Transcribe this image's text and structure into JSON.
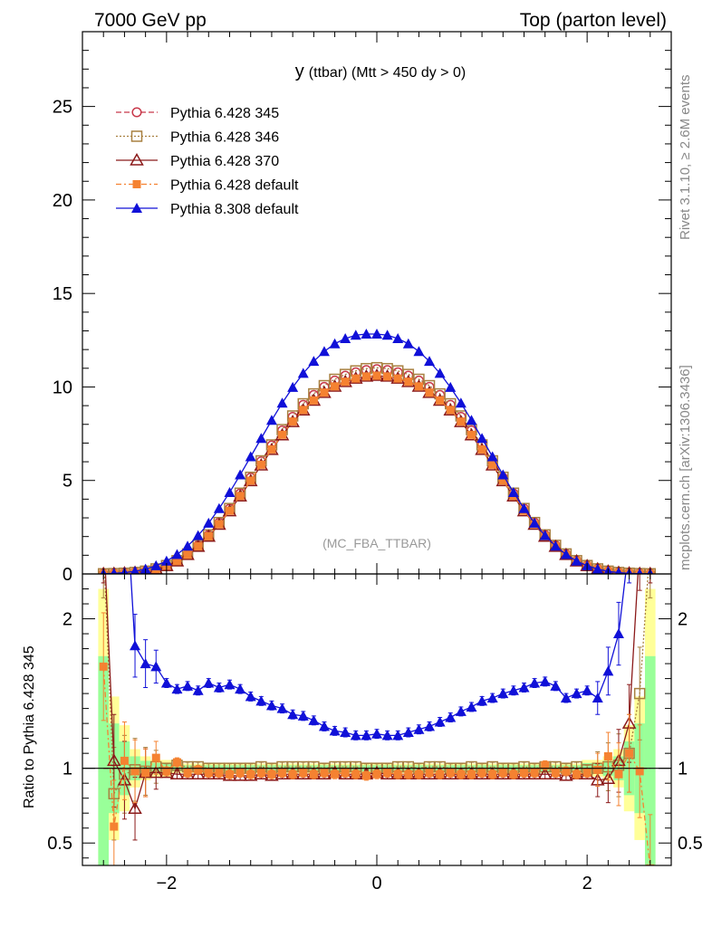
{
  "header": {
    "left": "7000 GeV pp",
    "right": "Top (parton level)"
  },
  "side_labels": {
    "rivet": "Rivet 3.1.10, ≥ 2.6M events",
    "mcplots": "mcplots.cern.ch [arXiv:1306.3436]"
  },
  "chart_data": {
    "type": "line",
    "title_main": "y",
    "title_rest": "(ttbar) (Mtt > 450 dy > 0)",
    "watermark": "(MC_FBA_TTBAR)",
    "ratio_ylabel": "Ratio to Pythia 6.428 345",
    "xlim": [
      -2.8,
      2.8
    ],
    "main_ylim": [
      0,
      29
    ],
    "ratio_ylim": [
      0.35,
      2.3
    ],
    "x_ticks": [
      -2,
      0,
      2
    ],
    "x_tick_labels": [
      "−2",
      "0",
      "2"
    ],
    "main_y_ticks": [
      0,
      5,
      10,
      15,
      20,
      25
    ],
    "ratio_y_ticks": [
      0.5,
      1,
      2
    ],
    "ratio_y_tick_labels": [
      "0.5",
      "1",
      "2"
    ],
    "grid": false,
    "legend_position": "top-left",
    "x": [
      -2.6,
      -2.5,
      -2.4,
      -2.3,
      -2.2,
      -2.1,
      -2.0,
      -1.9,
      -1.8,
      -1.7,
      -1.6,
      -1.5,
      -1.4,
      -1.3,
      -1.2,
      -1.1,
      -1.0,
      -0.9,
      -0.8,
      -0.7,
      -0.6,
      -0.5,
      -0.4,
      -0.3,
      -0.2,
      -0.1,
      0.0,
      0.1,
      0.2,
      0.3,
      0.4,
      0.5,
      0.6,
      0.7,
      0.8,
      0.9,
      1.0,
      1.1,
      1.2,
      1.3,
      1.4,
      1.5,
      1.6,
      1.7,
      1.8,
      1.9,
      2.0,
      2.1,
      2.2,
      2.3,
      2.4,
      2.5,
      2.6
    ],
    "series": [
      {
        "name": "Pythia 6.428 345",
        "color": "#c8384a",
        "marker": "open-circle",
        "line": "dashed",
        "values": [
          0.01,
          0.02,
          0.04,
          0.08,
          0.15,
          0.27,
          0.45,
          0.71,
          1.06,
          1.52,
          2.08,
          2.74,
          3.49,
          4.3,
          5.15,
          6.02,
          6.87,
          7.67,
          8.4,
          9.04,
          9.57,
          10.0,
          10.34,
          10.6,
          10.78,
          10.9,
          10.95,
          10.9,
          10.78,
          10.6,
          10.34,
          10.0,
          9.57,
          9.04,
          8.4,
          7.67,
          6.87,
          6.02,
          5.15,
          4.3,
          3.49,
          2.74,
          2.08,
          1.52,
          1.06,
          0.71,
          0.45,
          0.27,
          0.15,
          0.08,
          0.04,
          0.02,
          0.01
        ],
        "ratio": [
          1,
          1,
          1,
          1,
          1,
          1,
          1,
          1,
          1,
          1,
          1,
          1,
          1,
          1,
          1,
          1,
          1,
          1,
          1,
          1,
          1,
          1,
          1,
          1,
          1,
          1,
          1,
          1,
          1,
          1,
          1,
          1,
          1,
          1,
          1,
          1,
          1,
          1,
          1,
          1,
          1,
          1,
          1,
          1,
          1,
          1,
          1,
          1,
          1,
          1,
          1,
          1,
          1
        ]
      },
      {
        "name": "Pythia 6.428 346",
        "color": "#a88040",
        "marker": "open-square",
        "line": "dotted",
        "values": [
          0.01,
          0.02,
          0.04,
          0.08,
          0.15,
          0.27,
          0.45,
          0.71,
          1.07,
          1.53,
          2.09,
          2.75,
          3.5,
          4.32,
          5.17,
          6.05,
          6.9,
          7.72,
          8.45,
          9.1,
          9.63,
          10.07,
          10.41,
          10.67,
          10.86,
          10.98,
          11.03,
          10.98,
          10.86,
          10.67,
          10.41,
          10.07,
          9.63,
          9.1,
          8.45,
          7.72,
          6.9,
          6.05,
          5.17,
          4.32,
          3.5,
          2.75,
          2.09,
          1.53,
          1.07,
          0.71,
          0.45,
          0.27,
          0.15,
          0.08,
          0.04,
          0.02,
          0.01
        ],
        "ratio": [
          2.5,
          0.83,
          0.96,
          0.99,
          0.98,
          1.01,
          1.0,
          1.02,
          1.01,
          1.01,
          1.0,
          1.0,
          1.0,
          1.0,
          1.0,
          1.01,
          1.0,
          1.01,
          1.01,
          1.01,
          1.01,
          1.0,
          1.01,
          1.01,
          1.01,
          1.0,
          1.0,
          1.0,
          1.01,
          1.01,
          1.0,
          1.01,
          1.01,
          1.0,
          1.0,
          1.01,
          1.0,
          1.01,
          1.0,
          1.0,
          1.01,
          1.0,
          1.01,
          1.01,
          1.0,
          1.01,
          0.99,
          1.0,
          1.01,
          1.02,
          1.1,
          1.5,
          2.5
        ]
      },
      {
        "name": "Pythia 6.428 370",
        "color": "#8b1a1a",
        "marker": "open-triangle",
        "line": "solid",
        "values": [
          0.01,
          0.02,
          0.04,
          0.07,
          0.14,
          0.26,
          0.43,
          0.68,
          1.02,
          1.46,
          2.0,
          2.64,
          3.36,
          4.15,
          4.97,
          5.81,
          6.64,
          7.42,
          8.13,
          8.75,
          9.27,
          9.69,
          10.02,
          10.27,
          10.45,
          10.56,
          10.6,
          10.56,
          10.45,
          10.27,
          10.02,
          9.69,
          9.27,
          8.75,
          8.13,
          7.42,
          6.64,
          5.81,
          4.97,
          4.15,
          3.36,
          2.64,
          2.0,
          1.46,
          1.02,
          0.68,
          0.43,
          0.26,
          0.14,
          0.07,
          0.04,
          0.02,
          0.01
        ],
        "ratio": [
          2.6,
          1.05,
          0.92,
          0.73,
          0.97,
          0.97,
          0.97,
          0.96,
          0.96,
          0.96,
          0.96,
          0.96,
          0.95,
          0.95,
          0.95,
          0.96,
          0.95,
          0.96,
          0.96,
          0.96,
          0.96,
          0.96,
          0.97,
          0.96,
          0.96,
          0.96,
          0.97,
          0.96,
          0.96,
          0.96,
          0.96,
          0.96,
          0.96,
          0.96,
          0.96,
          0.96,
          0.96,
          0.96,
          0.96,
          0.96,
          0.96,
          0.96,
          0.96,
          0.96,
          0.95,
          0.96,
          0.96,
          0.92,
          0.93,
          1.05,
          1.3,
          2.5,
          2.6
        ]
      },
      {
        "name": "Pythia 6.428 default",
        "color": "#f58231",
        "marker": "filled-square",
        "line": "dashdot",
        "values": [
          0.01,
          0.02,
          0.04,
          0.08,
          0.15,
          0.26,
          0.44,
          0.69,
          1.03,
          1.48,
          2.02,
          2.66,
          3.38,
          4.17,
          4.99,
          5.84,
          6.66,
          7.44,
          8.15,
          8.77,
          9.28,
          9.7,
          10.03,
          10.28,
          10.45,
          10.56,
          10.6,
          10.56,
          10.45,
          10.28,
          10.03,
          9.7,
          9.28,
          8.77,
          8.15,
          7.44,
          6.66,
          5.84,
          4.99,
          4.17,
          3.38,
          2.66,
          2.02,
          1.48,
          1.03,
          0.69,
          0.44,
          0.26,
          0.15,
          0.08,
          0.04,
          0.02,
          0.01
        ],
        "ratio": [
          1.68,
          0.61,
          1.05,
          0.98,
          0.97,
          1.07,
          0.98,
          1.04,
          0.97,
          0.99,
          0.97,
          0.97,
          0.96,
          0.97,
          0.96,
          0.97,
          0.96,
          0.97,
          0.96,
          0.97,
          0.96,
          0.97,
          0.96,
          0.97,
          0.96,
          0.95,
          0.96,
          0.97,
          0.96,
          0.96,
          0.96,
          0.97,
          0.96,
          0.97,
          0.96,
          0.96,
          0.97,
          0.96,
          0.97,
          0.96,
          0.97,
          0.97,
          1.02,
          0.97,
          0.98,
          0.96,
          0.97,
          0.99,
          1.08,
          0.96,
          1.1,
          0.98,
          0.33
        ]
      },
      {
        "name": "Pythia 8.308 default",
        "color": "#1010d8",
        "marker": "filled-triangle",
        "line": "solid",
        "values": [
          0.01,
          0.03,
          0.07,
          0.14,
          0.26,
          0.44,
          0.69,
          1.04,
          1.49,
          2.05,
          2.72,
          3.5,
          4.36,
          5.3,
          6.27,
          7.25,
          8.22,
          9.14,
          9.98,
          10.73,
          11.37,
          11.9,
          12.31,
          12.59,
          12.77,
          12.83,
          12.83,
          12.77,
          12.59,
          12.31,
          11.9,
          11.37,
          10.73,
          9.98,
          9.14,
          8.22,
          7.25,
          6.27,
          5.3,
          4.36,
          3.5,
          2.72,
          2.05,
          1.49,
          1.04,
          0.69,
          0.44,
          0.26,
          0.14,
          0.07,
          0.03,
          0.01,
          0.01
        ],
        "ratio": [
          3.0,
          3.0,
          3.0,
          1.82,
          1.7,
          1.68,
          1.57,
          1.53,
          1.55,
          1.52,
          1.57,
          1.54,
          1.56,
          1.53,
          1.48,
          1.45,
          1.42,
          1.4,
          1.36,
          1.35,
          1.32,
          1.28,
          1.25,
          1.24,
          1.22,
          1.22,
          1.23,
          1.22,
          1.22,
          1.24,
          1.26,
          1.28,
          1.31,
          1.34,
          1.38,
          1.41,
          1.45,
          1.47,
          1.5,
          1.52,
          1.54,
          1.57,
          1.58,
          1.55,
          1.47,
          1.5,
          1.52,
          1.47,
          1.65,
          1.9,
          2.5,
          3.0,
          3.0
        ]
      }
    ]
  }
}
